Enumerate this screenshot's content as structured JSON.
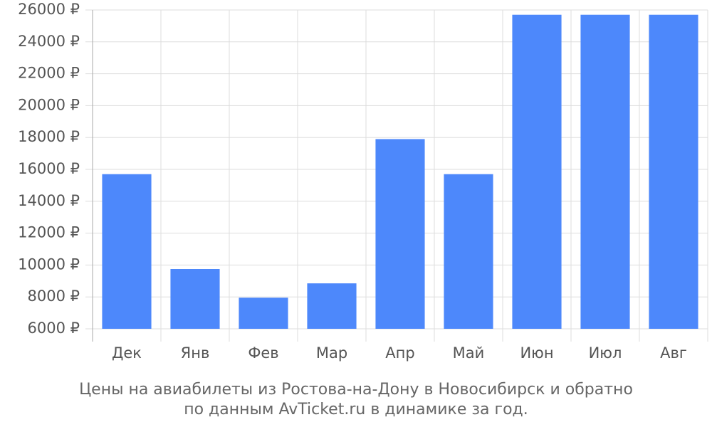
{
  "chart_data": {
    "type": "bar",
    "title": "Цены на авиабилеты из Ростова-на-Дону в Новосибирск и обратно",
    "subtitle": "по данным AvTicket.ru в динамике за год.",
    "categories": [
      "Дек",
      "Янв",
      "Фев",
      "Мар",
      "Апр",
      "Май",
      "Июн",
      "Июл",
      "Авг"
    ],
    "values": [
      15700,
      9750,
      7950,
      8850,
      17900,
      15700,
      25700,
      25700,
      25700
    ],
    "color": "#4d88fb",
    "ylim": [
      6000,
      26000
    ],
    "yticks": [
      {
        "value": 6000,
        "label": "6000 ₽"
      },
      {
        "value": 8000,
        "label": "8000 ₽"
      },
      {
        "value": 10000,
        "label": "10000 ₽"
      },
      {
        "value": 12000,
        "label": "12000 ₽"
      },
      {
        "value": 14000,
        "label": "14000 ₽"
      },
      {
        "value": 16000,
        "label": "16000 ₽"
      },
      {
        "value": 18000,
        "label": "18000 ₽"
      },
      {
        "value": 20000,
        "label": "20000 ₽"
      },
      {
        "value": 22000,
        "label": "22000 ₽"
      },
      {
        "value": 24000,
        "label": "24000 ₽"
      },
      {
        "value": 26000,
        "label": "26000 ₽"
      }
    ],
    "grid": true
  }
}
